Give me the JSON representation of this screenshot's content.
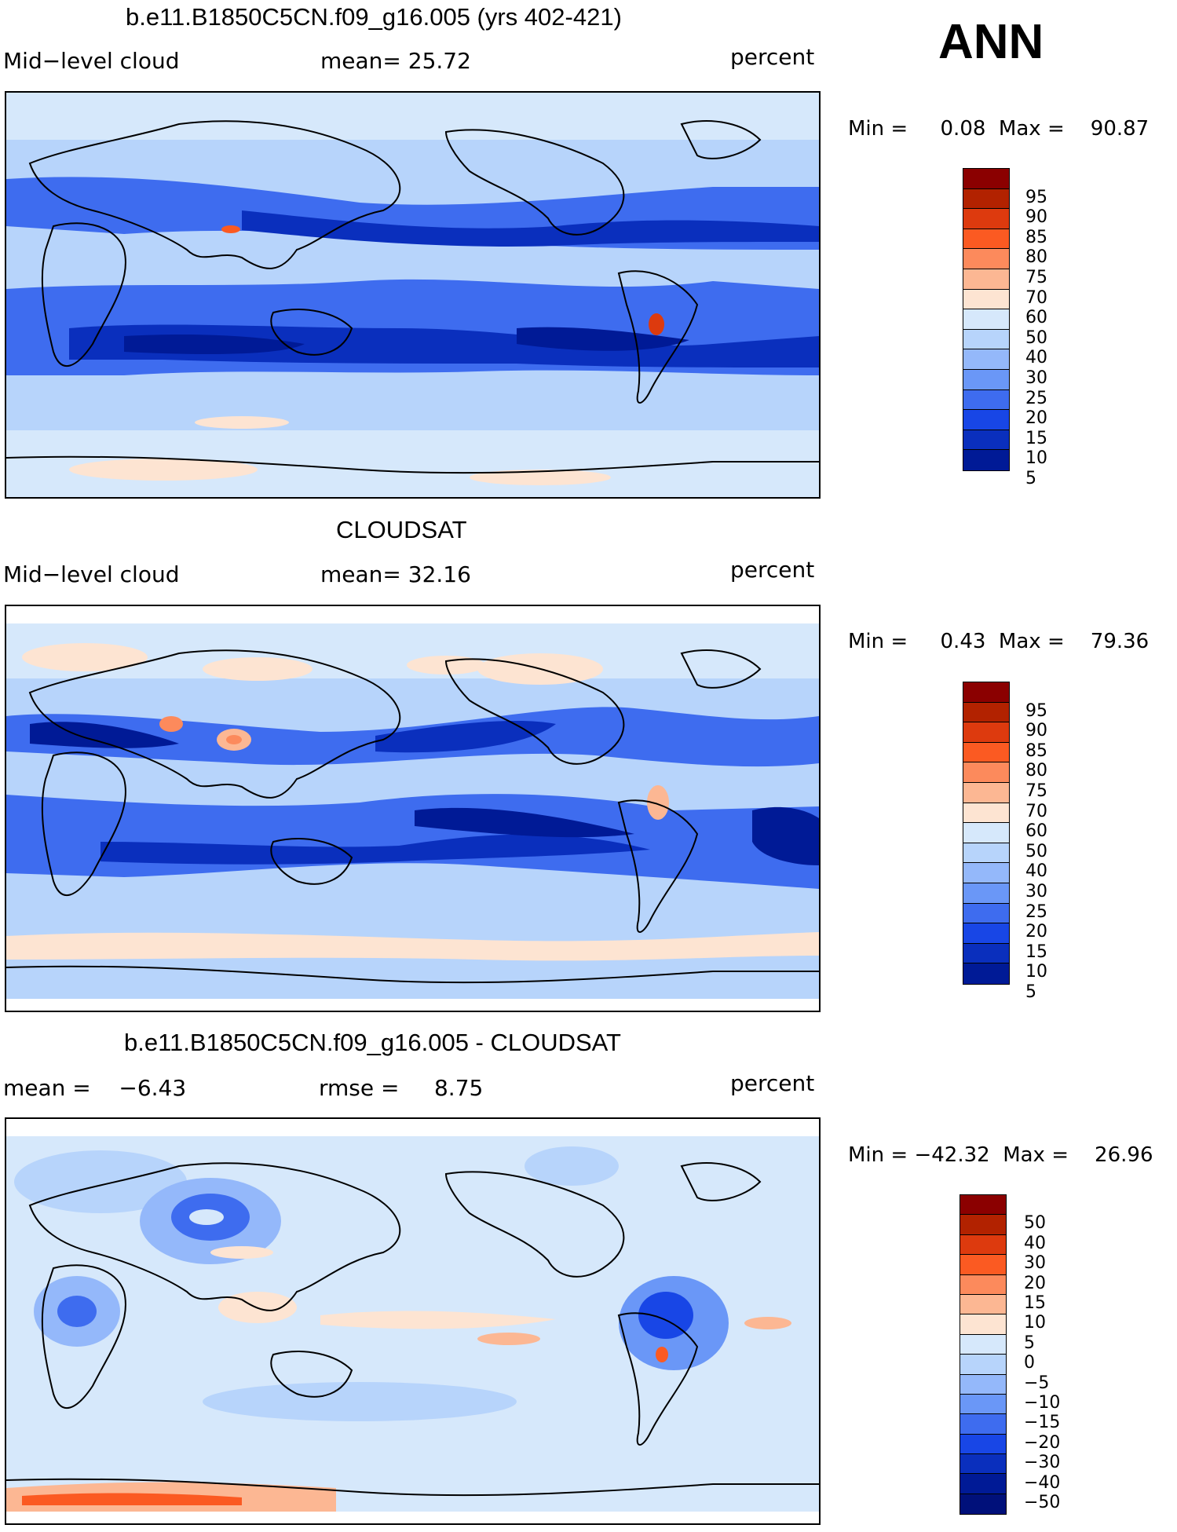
{
  "season": "ANN",
  "panels": [
    {
      "title": "b.e11.B1850C5CN.f09_g16.005 (yrs 402-421)",
      "left_label": "Mid−level cloud",
      "center_label": "mean=   25.72",
      "right_label": "percent",
      "minmax": "Min =     0.08  Max =    90.87",
      "colorbar": {
        "colors": [
          "#8b0000",
          "#b22200",
          "#dd3a0e",
          "#fb5a22",
          "#fc8a5c",
          "#fcb793",
          "#fde4d2",
          "#d6e8fb",
          "#b7d4fb",
          "#94b8fa",
          "#6a97f7",
          "#3e6cef",
          "#1846e6",
          "#0a2fbd",
          "#001a96"
        ],
        "labels": [
          "95",
          "90",
          "85",
          "80",
          "75",
          "70",
          "60",
          "50",
          "40",
          "30",
          "25",
          "20",
          "15",
          "10",
          "5"
        ]
      },
      "kind": "model"
    },
    {
      "title": "CLOUDSAT",
      "left_label": "Mid−level cloud",
      "center_label": "mean=   32.16",
      "right_label": "percent",
      "minmax": "Min =     0.43  Max =    79.36",
      "colorbar": {
        "colors": [
          "#8b0000",
          "#b22200",
          "#dd3a0e",
          "#fb5a22",
          "#fc8a5c",
          "#fcb793",
          "#fde4d2",
          "#d6e8fb",
          "#b7d4fb",
          "#94b8fa",
          "#6a97f7",
          "#3e6cef",
          "#1846e6",
          "#0a2fbd",
          "#001a96"
        ],
        "labels": [
          "95",
          "90",
          "85",
          "80",
          "75",
          "70",
          "60",
          "50",
          "40",
          "30",
          "25",
          "20",
          "15",
          "10",
          "5"
        ]
      },
      "kind": "obs"
    },
    {
      "title": "b.e11.B1850C5CN.f09_g16.005 - CLOUDSAT",
      "left_label": "mean =    −6.43",
      "center_label": "rmse =     8.75",
      "right_label": "percent",
      "minmax": "Min = −42.32  Max =    26.96",
      "colorbar": {
        "colors": [
          "#8b0000",
          "#b22200",
          "#dd3a0e",
          "#fb5a22",
          "#fc8a5c",
          "#fcb793",
          "#fde4d2",
          "#d6e8fb",
          "#b7d4fb",
          "#94b8fa",
          "#6a97f7",
          "#3e6cef",
          "#1846e6",
          "#0a2fbd",
          "#001a96",
          "#00107a"
        ],
        "labels": [
          "50",
          "40",
          "30",
          "20",
          "15",
          "10",
          "5",
          "0",
          "−5",
          "−10",
          "−15",
          "−20",
          "−30",
          "−40",
          "−50"
        ]
      },
      "kind": "diff"
    }
  ]
}
